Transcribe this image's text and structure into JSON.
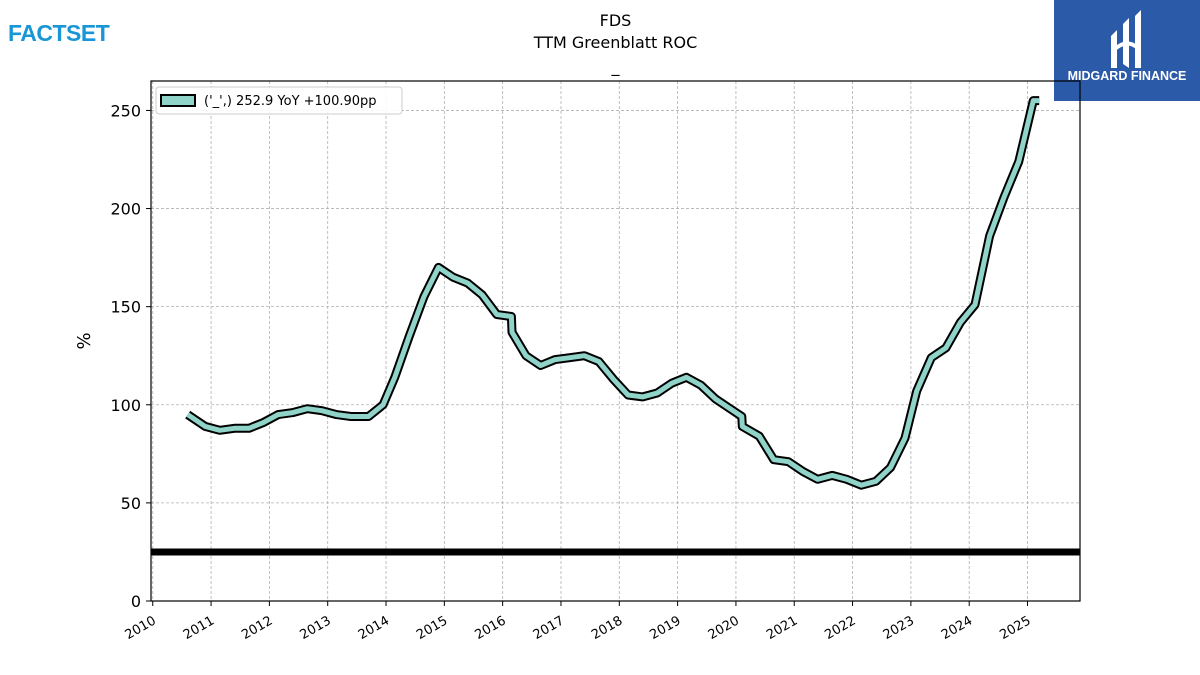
{
  "header": {
    "left_logo_text": "FACTSET",
    "left_logo_color": "#1996d6",
    "right_brand_text": "MIDGARD FINANCE",
    "right_brand_bg": "#2b5aa8"
  },
  "chart_data": {
    "type": "line",
    "title_lines": [
      "FDS",
      "TTM Greenblatt ROC",
      "_"
    ],
    "xlabel": "",
    "ylabel": "%",
    "ylim": [
      0,
      265
    ],
    "xlim": [
      2009.97,
      2025.9
    ],
    "grid": true,
    "legend_position": "top-left",
    "x_tick_labels": [
      "2010",
      "2011",
      "2012",
      "2013",
      "2014",
      "2015",
      "2016",
      "2017",
      "2018",
      "2019",
      "2020",
      "2021",
      "2022",
      "2023",
      "2024",
      "2025"
    ],
    "y_tick_labels": [
      "0",
      "50",
      "100",
      "150",
      "200",
      "250"
    ],
    "reference_line": {
      "y": 25,
      "color": "#000000"
    },
    "series": [
      {
        "name": "('_',) 252.9 YoY +100.90pp",
        "color": "#8fd3c9",
        "edge_color": "#000000",
        "points": [
          [
            2010.6,
            95
          ],
          [
            2010.9,
            89
          ],
          [
            2011.15,
            87
          ],
          [
            2011.4,
            88
          ],
          [
            2011.65,
            88
          ],
          [
            2011.9,
            91
          ],
          [
            2012.15,
            95
          ],
          [
            2012.4,
            96
          ],
          [
            2012.65,
            98
          ],
          [
            2012.9,
            97
          ],
          [
            2013.15,
            95
          ],
          [
            2013.4,
            94
          ],
          [
            2013.7,
            94
          ],
          [
            2013.95,
            100
          ],
          [
            2014.15,
            114
          ],
          [
            2014.4,
            135
          ],
          [
            2014.65,
            155
          ],
          [
            2014.9,
            170
          ],
          [
            2015.15,
            165
          ],
          [
            2015.4,
            162
          ],
          [
            2015.65,
            156
          ],
          [
            2015.9,
            146
          ],
          [
            2016.15,
            145
          ],
          [
            2016.16,
            137
          ],
          [
            2016.4,
            125
          ],
          [
            2016.65,
            120
          ],
          [
            2016.9,
            123
          ],
          [
            2017.15,
            124
          ],
          [
            2017.4,
            125
          ],
          [
            2017.65,
            122
          ],
          [
            2017.9,
            113
          ],
          [
            2018.15,
            105
          ],
          [
            2018.4,
            104
          ],
          [
            2018.65,
            106
          ],
          [
            2018.9,
            111
          ],
          [
            2019.15,
            114
          ],
          [
            2019.4,
            110
          ],
          [
            2019.65,
            103
          ],
          [
            2019.9,
            98
          ],
          [
            2020.1,
            94
          ],
          [
            2020.11,
            89
          ],
          [
            2020.4,
            84
          ],
          [
            2020.65,
            72
          ],
          [
            2020.9,
            71
          ],
          [
            2021.15,
            66
          ],
          [
            2021.4,
            62
          ],
          [
            2021.65,
            64
          ],
          [
            2021.9,
            62
          ],
          [
            2022.15,
            59
          ],
          [
            2022.4,
            61
          ],
          [
            2022.65,
            68
          ],
          [
            2022.9,
            83
          ],
          [
            2023.1,
            107
          ],
          [
            2023.35,
            124
          ],
          [
            2023.6,
            129
          ],
          [
            2023.85,
            142
          ],
          [
            2024.1,
            151
          ],
          [
            2024.35,
            186
          ],
          [
            2024.6,
            206
          ],
          [
            2024.85,
            224
          ],
          [
            2025.1,
            255
          ],
          [
            2025.2,
            255
          ]
        ]
      }
    ]
  }
}
